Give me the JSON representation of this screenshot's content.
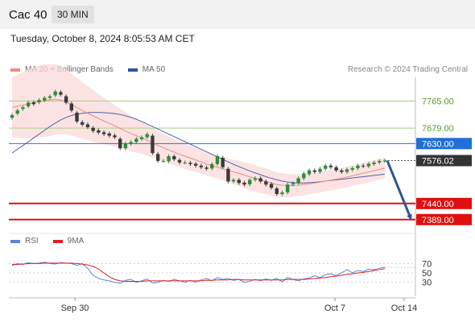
{
  "header": {
    "title": "Cac 40",
    "interval": "30 MIN"
  },
  "datetime": "Tuesday, October 8, 2024 8:05:53 AM CET",
  "legend_main": [
    {
      "label": "MA 20 + Bollinger Bands",
      "color": "#f28b82"
    },
    {
      "label": "MA 50",
      "color": "#2f5597"
    }
  ],
  "credit": "Research © 2024 Trading Central",
  "legend_rsi": [
    {
      "label": "RSI",
      "color": "#5b84d6"
    },
    {
      "label": "9MA",
      "color": "#e02020"
    }
  ],
  "chart_data": {
    "type": "candlestick",
    "price_range": [
      7345,
      7830
    ],
    "levels": [
      {
        "value": 7765.0,
        "label": "7765.00",
        "kind": "resistance"
      },
      {
        "value": 7679.0,
        "label": "7679.00",
        "kind": "resistance"
      },
      {
        "value": 7630.0,
        "label": "7630.00",
        "kind": "pivot"
      },
      {
        "value": 7576.02,
        "label": "7576.02",
        "kind": "last"
      },
      {
        "value": 7440.0,
        "label": "7440.00",
        "kind": "support"
      },
      {
        "value": 7389.0,
        "label": "7389.00",
        "kind": "support"
      }
    ],
    "x_ticks": [
      "Sep 30",
      "Oct 7",
      "Oct 14"
    ],
    "close": [
      7720,
      7735,
      7745,
      7760,
      7755,
      7768,
      7775,
      7780,
      7795,
      7785,
      7760,
      7735,
      7700,
      7690,
      7682,
      7670,
      7665,
      7660,
      7655,
      7650,
      7615,
      7630,
      7635,
      7645,
      7650,
      7660,
      7600,
      7575,
      7575,
      7590,
      7580,
      7570,
      7570,
      7565,
      7560,
      7555,
      7550,
      7565,
      7590,
      7555,
      7510,
      7515,
      7505,
      7500,
      7515,
      7520,
      7510,
      7500,
      7490,
      7470,
      7475,
      7500,
      7505,
      7520,
      7535,
      7545,
      7540,
      7550,
      7560,
      7555,
      7545,
      7540,
      7548,
      7552,
      7560,
      7558,
      7566,
      7570,
      7575,
      7576
    ],
    "open_offsets": [
      -8,
      -10,
      -5,
      -12,
      6,
      -7,
      -8,
      -5,
      -12,
      8,
      20,
      22,
      28,
      8,
      9,
      10,
      7,
      6,
      7,
      6,
      30,
      -15,
      -6,
      -10,
      -6,
      -10,
      55,
      22,
      0,
      -16,
      10,
      8,
      0,
      4,
      6,
      5,
      4,
      -14,
      -25,
      30,
      40,
      -5,
      10,
      6,
      -14,
      -5,
      10,
      10,
      12,
      18,
      -5,
      -25,
      -5,
      -15,
      -15,
      -12,
      5,
      -10,
      -10,
      5,
      10,
      5,
      -8,
      -5,
      -8,
      2,
      -8,
      -5,
      -5,
      -1
    ],
    "ma20": [
      7745,
      7748,
      7752,
      7756,
      7760,
      7763,
      7766,
      7768,
      7770,
      7768,
      7762,
      7754,
      7744,
      7735,
      7726,
      7718,
      7710,
      7702,
      7694,
      7686,
      7678,
      7670,
      7662,
      7655,
      7648,
      7640,
      7632,
      7624,
      7617,
      7610,
      7603,
      7596,
      7590,
      7584,
      7578,
      7572,
      7565,
      7560,
      7555,
      7550,
      7545,
      7540,
      7536,
      7530,
      7525,
      7520,
      7514,
      7510,
      7505,
      7500,
      7498,
      7497,
      7497,
      7498,
      7500,
      7502,
      7505,
      7508,
      7511,
      7514,
      7517,
      7520,
      7524,
      7528,
      7532,
      7536,
      7540,
      7544,
      7548,
      7552
    ],
    "ma50": [
      7600,
      7612,
      7624,
      7636,
      7648,
      7660,
      7672,
      7684,
      7695,
      7705,
      7713,
      7719,
      7723,
      7726,
      7728,
      7729,
      7729,
      7728,
      7727,
      7725,
      7722,
      7718,
      7713,
      7707,
      7700,
      7692,
      7684,
      7676,
      7668,
      7660,
      7652,
      7644,
      7636,
      7628,
      7620,
      7612,
      7604,
      7596,
      7588,
      7580,
      7572,
      7564,
      7557,
      7550,
      7543,
      7537,
      7531,
      7525,
      7520,
      7515,
      7511,
      7508,
      7506,
      7505,
      7505,
      7506,
      7507,
      7509,
      7511,
      7513,
      7515,
      7517,
      7519,
      7521,
      7523,
      7525,
      7527,
      7529,
      7531,
      7533
    ],
    "band_width": [
      95,
      100,
      105,
      110,
      112,
      114,
      115,
      114,
      112,
      108,
      103,
      98,
      94,
      90,
      86,
      82,
      78,
      74,
      70,
      66,
      63,
      60,
      57,
      54,
      51,
      49,
      47,
      45,
      44,
      43,
      42,
      41,
      40,
      39,
      38,
      37,
      36,
      36,
      36,
      37,
      38,
      39,
      40,
      41,
      42,
      42,
      42,
      41,
      40,
      39,
      38,
      37,
      36,
      35,
      34,
      33,
      33,
      33,
      33,
      33,
      33,
      33,
      33,
      33,
      33,
      33,
      33,
      33,
      33,
      33
    ],
    "rsi": {
      "range": [
        0,
        100
      ],
      "ticks": [
        70,
        50,
        30
      ],
      "rsi": [
        66,
        70,
        68,
        72,
        70,
        71,
        73,
        70,
        69,
        72,
        71,
        70,
        66,
        70,
        60,
        45,
        38,
        35,
        33,
        30,
        28,
        34,
        36,
        30,
        33,
        37,
        28,
        30,
        34,
        32,
        36,
        33,
        30,
        34,
        30,
        35,
        38,
        33,
        40,
        36,
        38,
        34,
        36,
        30,
        32,
        36,
        33,
        37,
        34,
        38,
        31,
        40,
        36,
        33,
        37,
        39,
        44,
        40,
        46,
        48,
        44,
        50,
        57,
        50,
        55,
        53,
        58,
        57,
        60,
        62
      ],
      "ma9": [
        68,
        68,
        69,
        70,
        70,
        70,
        71,
        71,
        71,
        71,
        71,
        71,
        70,
        69,
        67,
        64,
        58,
        50,
        42,
        36,
        33,
        32,
        32,
        32,
        32,
        33,
        33,
        33,
        33,
        33,
        33,
        33,
        33,
        33,
        33,
        33,
        34,
        34,
        35,
        35,
        35,
        36,
        36,
        35,
        35,
        35,
        35,
        35,
        35,
        35,
        35,
        36,
        36,
        36,
        36,
        37,
        38,
        39,
        40,
        42,
        43,
        45,
        47,
        48,
        50,
        51,
        53,
        55,
        57,
        59
      ]
    },
    "projection": {
      "from": 7576,
      "to": 7389
    }
  }
}
